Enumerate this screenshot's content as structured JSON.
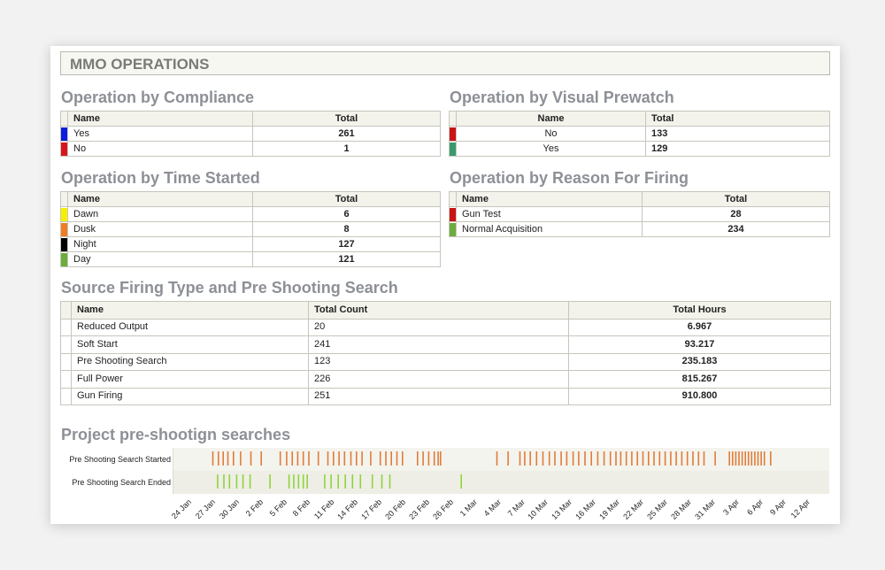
{
  "header": {
    "title": "MMO OPERATIONS"
  },
  "compliance": {
    "title": "Operation by Compliance",
    "col_name": "Name",
    "col_total": "Total",
    "rows": [
      {
        "name": "Yes",
        "total": "261",
        "color": "#0a1edc"
      },
      {
        "name": "No",
        "total": "1",
        "color": "#d7141e"
      }
    ]
  },
  "prewatch": {
    "title": "Operation by Visual Prewatch",
    "col_name": "Name",
    "col_total": "Total",
    "rows": [
      {
        "name": "No",
        "total": "133",
        "color": "#c81414"
      },
      {
        "name": "Yes",
        "total": "129",
        "color": "#3a9a6e"
      }
    ]
  },
  "time_started": {
    "title": "Operation by Time Started",
    "col_name": "Name",
    "col_total": "Total",
    "rows": [
      {
        "name": "Dawn",
        "total": "6",
        "color": "#f5f000"
      },
      {
        "name": "Dusk",
        "total": "8",
        "color": "#f07d23"
      },
      {
        "name": "Night",
        "total": "127",
        "color": "#000000"
      },
      {
        "name": "Day",
        "total": "121",
        "color": "#6aad3c"
      }
    ]
  },
  "reason": {
    "title": "Operation by Reason For Firing",
    "col_name": "Name",
    "col_total": "Total",
    "rows": [
      {
        "name": "Gun Test",
        "total": "28",
        "color": "#c81414"
      },
      {
        "name": "Normal Acquisition",
        "total": "234",
        "color": "#6aad3c"
      }
    ]
  },
  "source_firing": {
    "title": "Source Firing Type and Pre Shooting Search",
    "col_name": "Name",
    "col_count": "Total Count",
    "col_hours": "Total Hours",
    "rows": [
      {
        "name": "Reduced Output",
        "count": "20",
        "hours": "6.967"
      },
      {
        "name": "Soft Start",
        "count": "241",
        "hours": "93.217"
      },
      {
        "name": "Pre Shooting Search",
        "count": "123",
        "hours": "235.183"
      },
      {
        "name": "Full Power",
        "count": "226",
        "hours": "815.267"
      },
      {
        "name": "Gun Firing",
        "count": "251",
        "hours": "910.800"
      }
    ]
  },
  "timeline": {
    "title": "Project pre-shootign searches",
    "started_label": "Pre Shooting Search Started",
    "ended_label": "Pre Shooting Search Ended",
    "started_color": "#e07c3a",
    "ended_color": "#8fd43a",
    "ticks": [
      "24 Jan",
      "27 Jan",
      "30 Jan",
      "2 Feb",
      "5 Feb",
      "8 Feb",
      "11 Feb",
      "14 Feb",
      "17 Feb",
      "20 Feb",
      "23 Feb",
      "26 Feb",
      "1 Mar",
      "4 Mar",
      "7 Mar",
      "10 Mar",
      "13 Mar",
      "16 Mar",
      "19 Mar",
      "22 Mar",
      "25 Mar",
      "28 Mar",
      "31 Mar",
      "3 Apr",
      "6 Apr",
      "9 Apr",
      "12 Apr"
    ],
    "started_days": [
      26.2,
      26.9,
      27.5,
      28.1,
      28.8,
      29.7,
      31.0,
      32.3,
      34.7,
      35.5,
      36.2,
      36.9,
      37.6,
      38.3,
      39.5,
      40.7,
      41.4,
      42.1,
      42.8,
      43.6,
      44.3,
      45.0,
      46.1,
      47.3,
      48.0,
      48.7,
      49.4,
      50.1,
      52.0,
      52.7,
      53.4,
      54.1,
      54.6,
      54.9,
      62.0,
      63.4,
      64.9,
      65.5,
      66.2,
      67.0,
      67.8,
      68.6,
      69.3,
      70.1,
      70.8,
      71.6,
      72.3,
      73.1,
      73.9,
      74.7,
      75.5,
      76.3,
      77.0,
      77.6,
      78.3,
      79.0,
      79.7,
      80.4,
      81.1,
      81.8,
      82.5,
      83.2,
      83.9,
      84.6,
      85.3,
      86.0,
      86.7,
      87.4,
      88.1,
      89.5,
      91.3,
      91.7,
      92.1,
      92.5,
      92.9,
      93.3,
      93.7,
      94.1,
      94.5,
      94.9,
      95.3,
      95.7,
      96.5
    ],
    "ended_days": [
      26.8,
      27.6,
      28.3,
      29.2,
      30.0,
      30.9,
      33.4,
      35.8,
      36.4,
      37.0,
      37.6,
      38.1,
      40.3,
      41.1,
      42.0,
      42.9,
      43.8,
      44.8,
      46.3,
      47.5,
      48.5,
      57.5
    ]
  }
}
